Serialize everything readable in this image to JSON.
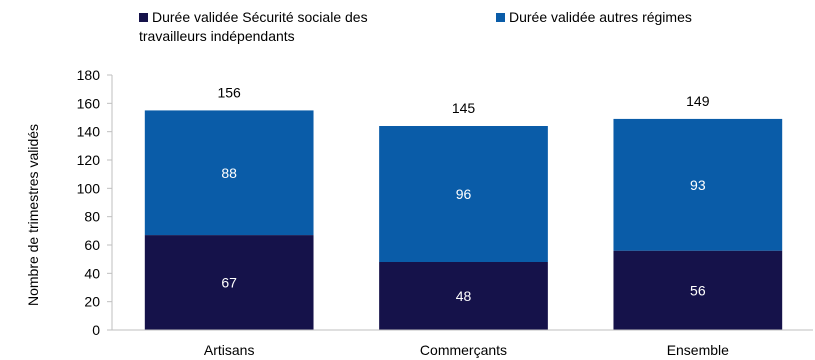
{
  "chart_data": {
    "type": "bar",
    "stacked": true,
    "categories": [
      "Artisans",
      "Commerçants",
      "Ensemble"
    ],
    "series": [
      {
        "name": "Durée validée Sécurité sociale des travailleurs indépendants",
        "values": [
          67,
          48,
          56
        ],
        "color": "#15124a"
      },
      {
        "name": "Durée validée autres régimes",
        "values": [
          88,
          96,
          93
        ],
        "color": "#0a5ca8"
      }
    ],
    "totals": [
      156,
      145,
      149
    ],
    "ylabel": "Nombre de trimestres validés",
    "xlabel": "",
    "ylim": [
      0,
      180
    ],
    "yticks": [
      0,
      20,
      40,
      60,
      80,
      100,
      120,
      140,
      160,
      180
    ],
    "grid": false,
    "legend": "top"
  }
}
